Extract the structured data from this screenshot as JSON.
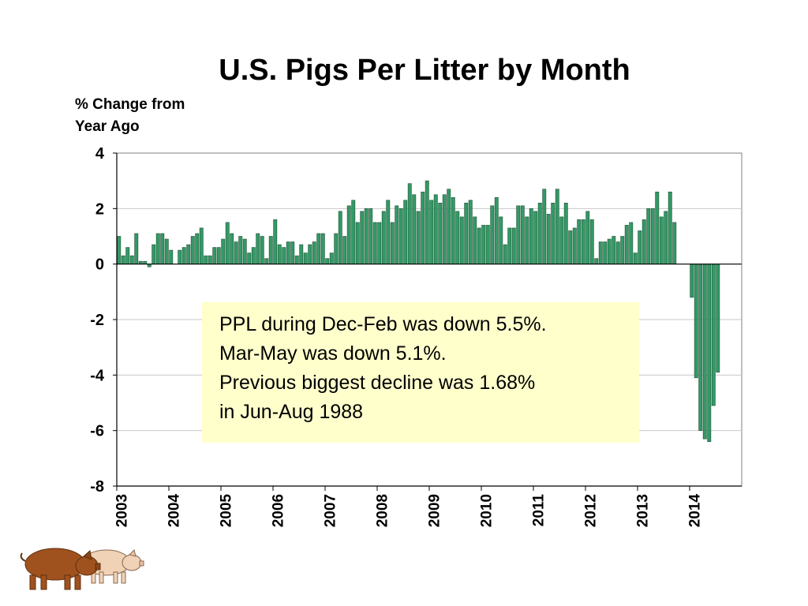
{
  "title": "U.S. Pigs Per Litter by Month",
  "ylabel_line1": "% Change from",
  "ylabel_line2": "Year Ago",
  "callout": {
    "line1": "PPL during Dec-Feb was down 5.5%.",
    "line2": "Mar-May was down 5.1%.",
    "line3": "Previous biggest decline was 1.68%",
    "line4": "in Jun-Aug 1988"
  },
  "colors": {
    "bar": "#339966",
    "bar_edge": "#1f4f35",
    "callout_bg": "#ffffcc"
  },
  "chart_data": {
    "type": "bar",
    "ylim": [
      -8,
      4
    ],
    "yticks": [
      4,
      2,
      0,
      -2,
      -4,
      -6,
      -8
    ],
    "year_labels": [
      "2003",
      "2004",
      "2005",
      "2006",
      "2007",
      "2008",
      "2009",
      "2010",
      "2011",
      "2012",
      "2013",
      "2014"
    ],
    "grid": true,
    "x_start": "2003-01",
    "values": [
      1.0,
      0.3,
      0.6,
      0.3,
      1.1,
      0.1,
      0.1,
      -0.1,
      0.7,
      1.1,
      1.1,
      0.9,
      0.5,
      0.0,
      0.5,
      0.6,
      0.7,
      1.0,
      1.1,
      1.3,
      0.3,
      0.3,
      0.6,
      0.6,
      0.9,
      1.5,
      1.1,
      0.8,
      1.0,
      0.9,
      0.4,
      0.6,
      1.1,
      1.0,
      0.2,
      1.0,
      1.6,
      0.7,
      0.6,
      0.8,
      0.8,
      0.3,
      0.7,
      0.4,
      0.7,
      0.8,
      1.1,
      1.1,
      0.2,
      0.4,
      1.1,
      1.9,
      1.0,
      2.1,
      2.3,
      1.5,
      1.9,
      2.0,
      2.0,
      1.5,
      1.5,
      1.9,
      2.3,
      1.5,
      2.1,
      2.0,
      2.3,
      2.9,
      2.5,
      1.9,
      2.6,
      3.0,
      2.3,
      2.5,
      2.2,
      2.5,
      2.7,
      2.4,
      1.9,
      1.7,
      2.2,
      2.3,
      1.7,
      1.3,
      1.4,
      1.4,
      2.1,
      2.4,
      1.7,
      0.7,
      1.3,
      1.3,
      2.1,
      2.1,
      1.7,
      2.0,
      1.9,
      2.2,
      2.7,
      1.8,
      2.2,
      2.7,
      1.7,
      2.2,
      1.2,
      1.3,
      1.6,
      1.6,
      1.9,
      1.6,
      0.2,
      0.8,
      0.8,
      0.9,
      1.0,
      0.8,
      1.0,
      1.4,
      1.5,
      0.4,
      1.2,
      1.6,
      2.0,
      2.0,
      2.6,
      1.7,
      1.9,
      2.6,
      1.5,
      0.0,
      0.0,
      0.0,
      -1.2,
      -4.1,
      -6.0,
      -6.3,
      -6.4,
      -5.1,
      -3.9
    ]
  }
}
